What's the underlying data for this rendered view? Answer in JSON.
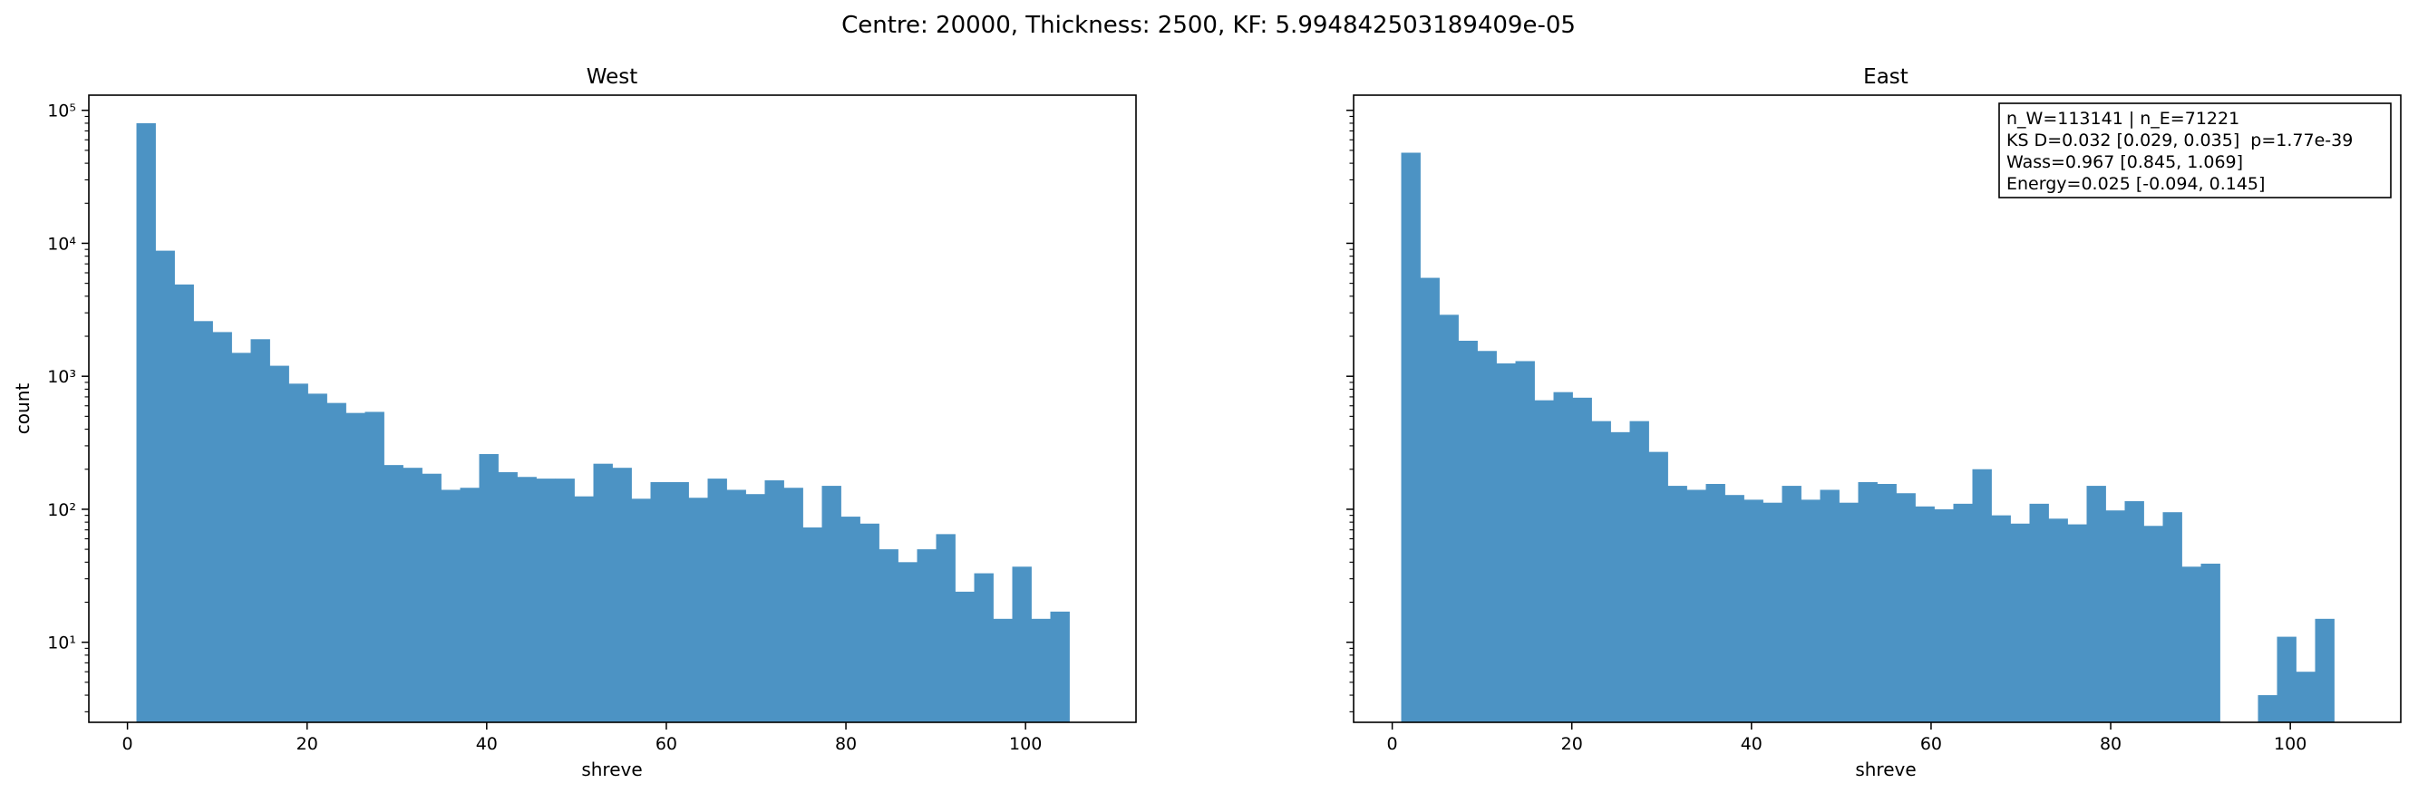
{
  "figure": {
    "suptitle": "Centre: 20000, Thickness: 2500, KF: 5.994842503189409e-05",
    "ylabel": "count",
    "colors": {
      "bar": "#4c93c4",
      "axis": "#000000",
      "background": "#ffffff"
    }
  },
  "stats_box": {
    "lines": [
      "n_W=113141 | n_E=71221",
      "KS D=0.032 [0.029, 0.035]  p=1.77e-39",
      "Wass=0.967 [0.845, 1.069]",
      "Energy=0.025 [-0.094, 0.145]"
    ]
  },
  "chart_data": [
    {
      "type": "bar",
      "title": "West",
      "xlabel": "shreve",
      "ylabel": "count",
      "yscale": "log",
      "xlim": [
        -4.3,
        112.3
      ],
      "ylim": [
        2.5,
        130000
      ],
      "bin_start": 1,
      "bin_width": 2.12,
      "xticks": [
        0,
        20,
        40,
        60,
        80,
        100
      ],
      "yticks": [
        10,
        100,
        1000,
        10000,
        100000
      ],
      "ytick_labels": [
        "10¹",
        "10²",
        "10³",
        "10⁴",
        "10⁵"
      ],
      "values": [
        80000,
        8800,
        4900,
        2600,
        2150,
        1500,
        1900,
        1200,
        880,
        740,
        630,
        530,
        540,
        215,
        205,
        185,
        140,
        145,
        260,
        190,
        175,
        170,
        170,
        125,
        220,
        205,
        120,
        160,
        160,
        122,
        170,
        140,
        130,
        165,
        145,
        73,
        150,
        88,
        78,
        50,
        40,
        50,
        65,
        24,
        33,
        15,
        37,
        15,
        17
      ]
    },
    {
      "type": "bar",
      "title": "East",
      "xlabel": "shreve",
      "yscale": "log",
      "xlim": [
        -4.3,
        112.3
      ],
      "ylim": [
        2.5,
        130000
      ],
      "bin_start": 1,
      "bin_width": 2.12,
      "xticks": [
        0,
        20,
        40,
        60,
        80,
        100
      ],
      "yticks": [
        10,
        100,
        1000,
        10000,
        100000
      ],
      "values": [
        48000,
        5500,
        2900,
        1850,
        1550,
        1250,
        1300,
        660,
        760,
        690,
        460,
        380,
        460,
        270,
        150,
        140,
        155,
        128,
        118,
        112,
        150,
        118,
        140,
        112,
        160,
        155,
        132,
        105,
        100,
        110,
        200,
        90,
        78,
        110,
        85,
        77,
        150,
        98,
        115,
        75,
        95,
        37,
        39,
        0,
        0,
        4,
        11,
        6,
        15
      ]
    }
  ]
}
